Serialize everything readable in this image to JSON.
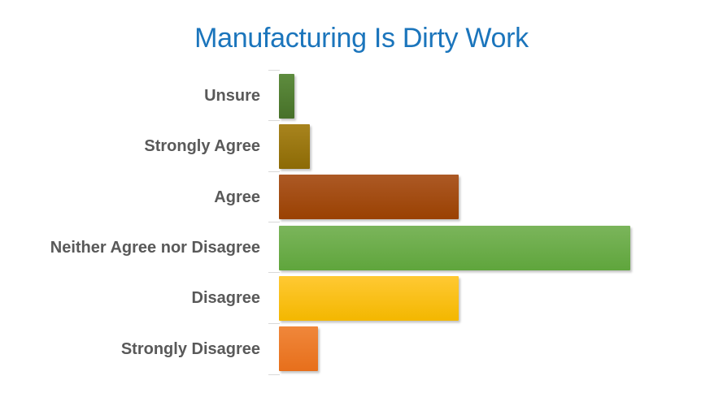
{
  "page": {
    "background": "#FFFFFF"
  },
  "title": {
    "text": "Manufacturing Is Dirty Work",
    "color": "#1B75BC"
  },
  "chart_data": {
    "type": "bar",
    "orientation": "horizontal",
    "title": "Manufacturing Is Dirty Work",
    "categories": [
      "Unsure",
      "Strongly Agree",
      "Agree",
      "Neither Agree nor Disagree",
      "Disagree",
      "Strongly Disagree"
    ],
    "values": [
      2,
      4,
      23,
      45,
      23,
      5
    ],
    "xlim": [
      0,
      45
    ],
    "xlabel": "",
    "ylabel": "",
    "grid": false,
    "legend": false,
    "label_color": "#595959",
    "tick_color": "#D9D9D9",
    "bar_colors": [
      {
        "name": "dark-green",
        "top": "#5E8C3E",
        "bottom": "#477129"
      },
      {
        "name": "dark-gold",
        "top": "#A8841E",
        "bottom": "#8C6A05"
      },
      {
        "name": "rust-red",
        "top": "#AC5925",
        "bottom": "#9A4102"
      },
      {
        "name": "green",
        "top": "#7BB55B",
        "bottom": "#5FA53C"
      },
      {
        "name": "gold",
        "top": "#FFC933",
        "bottom": "#F3B700"
      },
      {
        "name": "orange",
        "top": "#F0873B",
        "bottom": "#E76F1B"
      }
    ]
  }
}
